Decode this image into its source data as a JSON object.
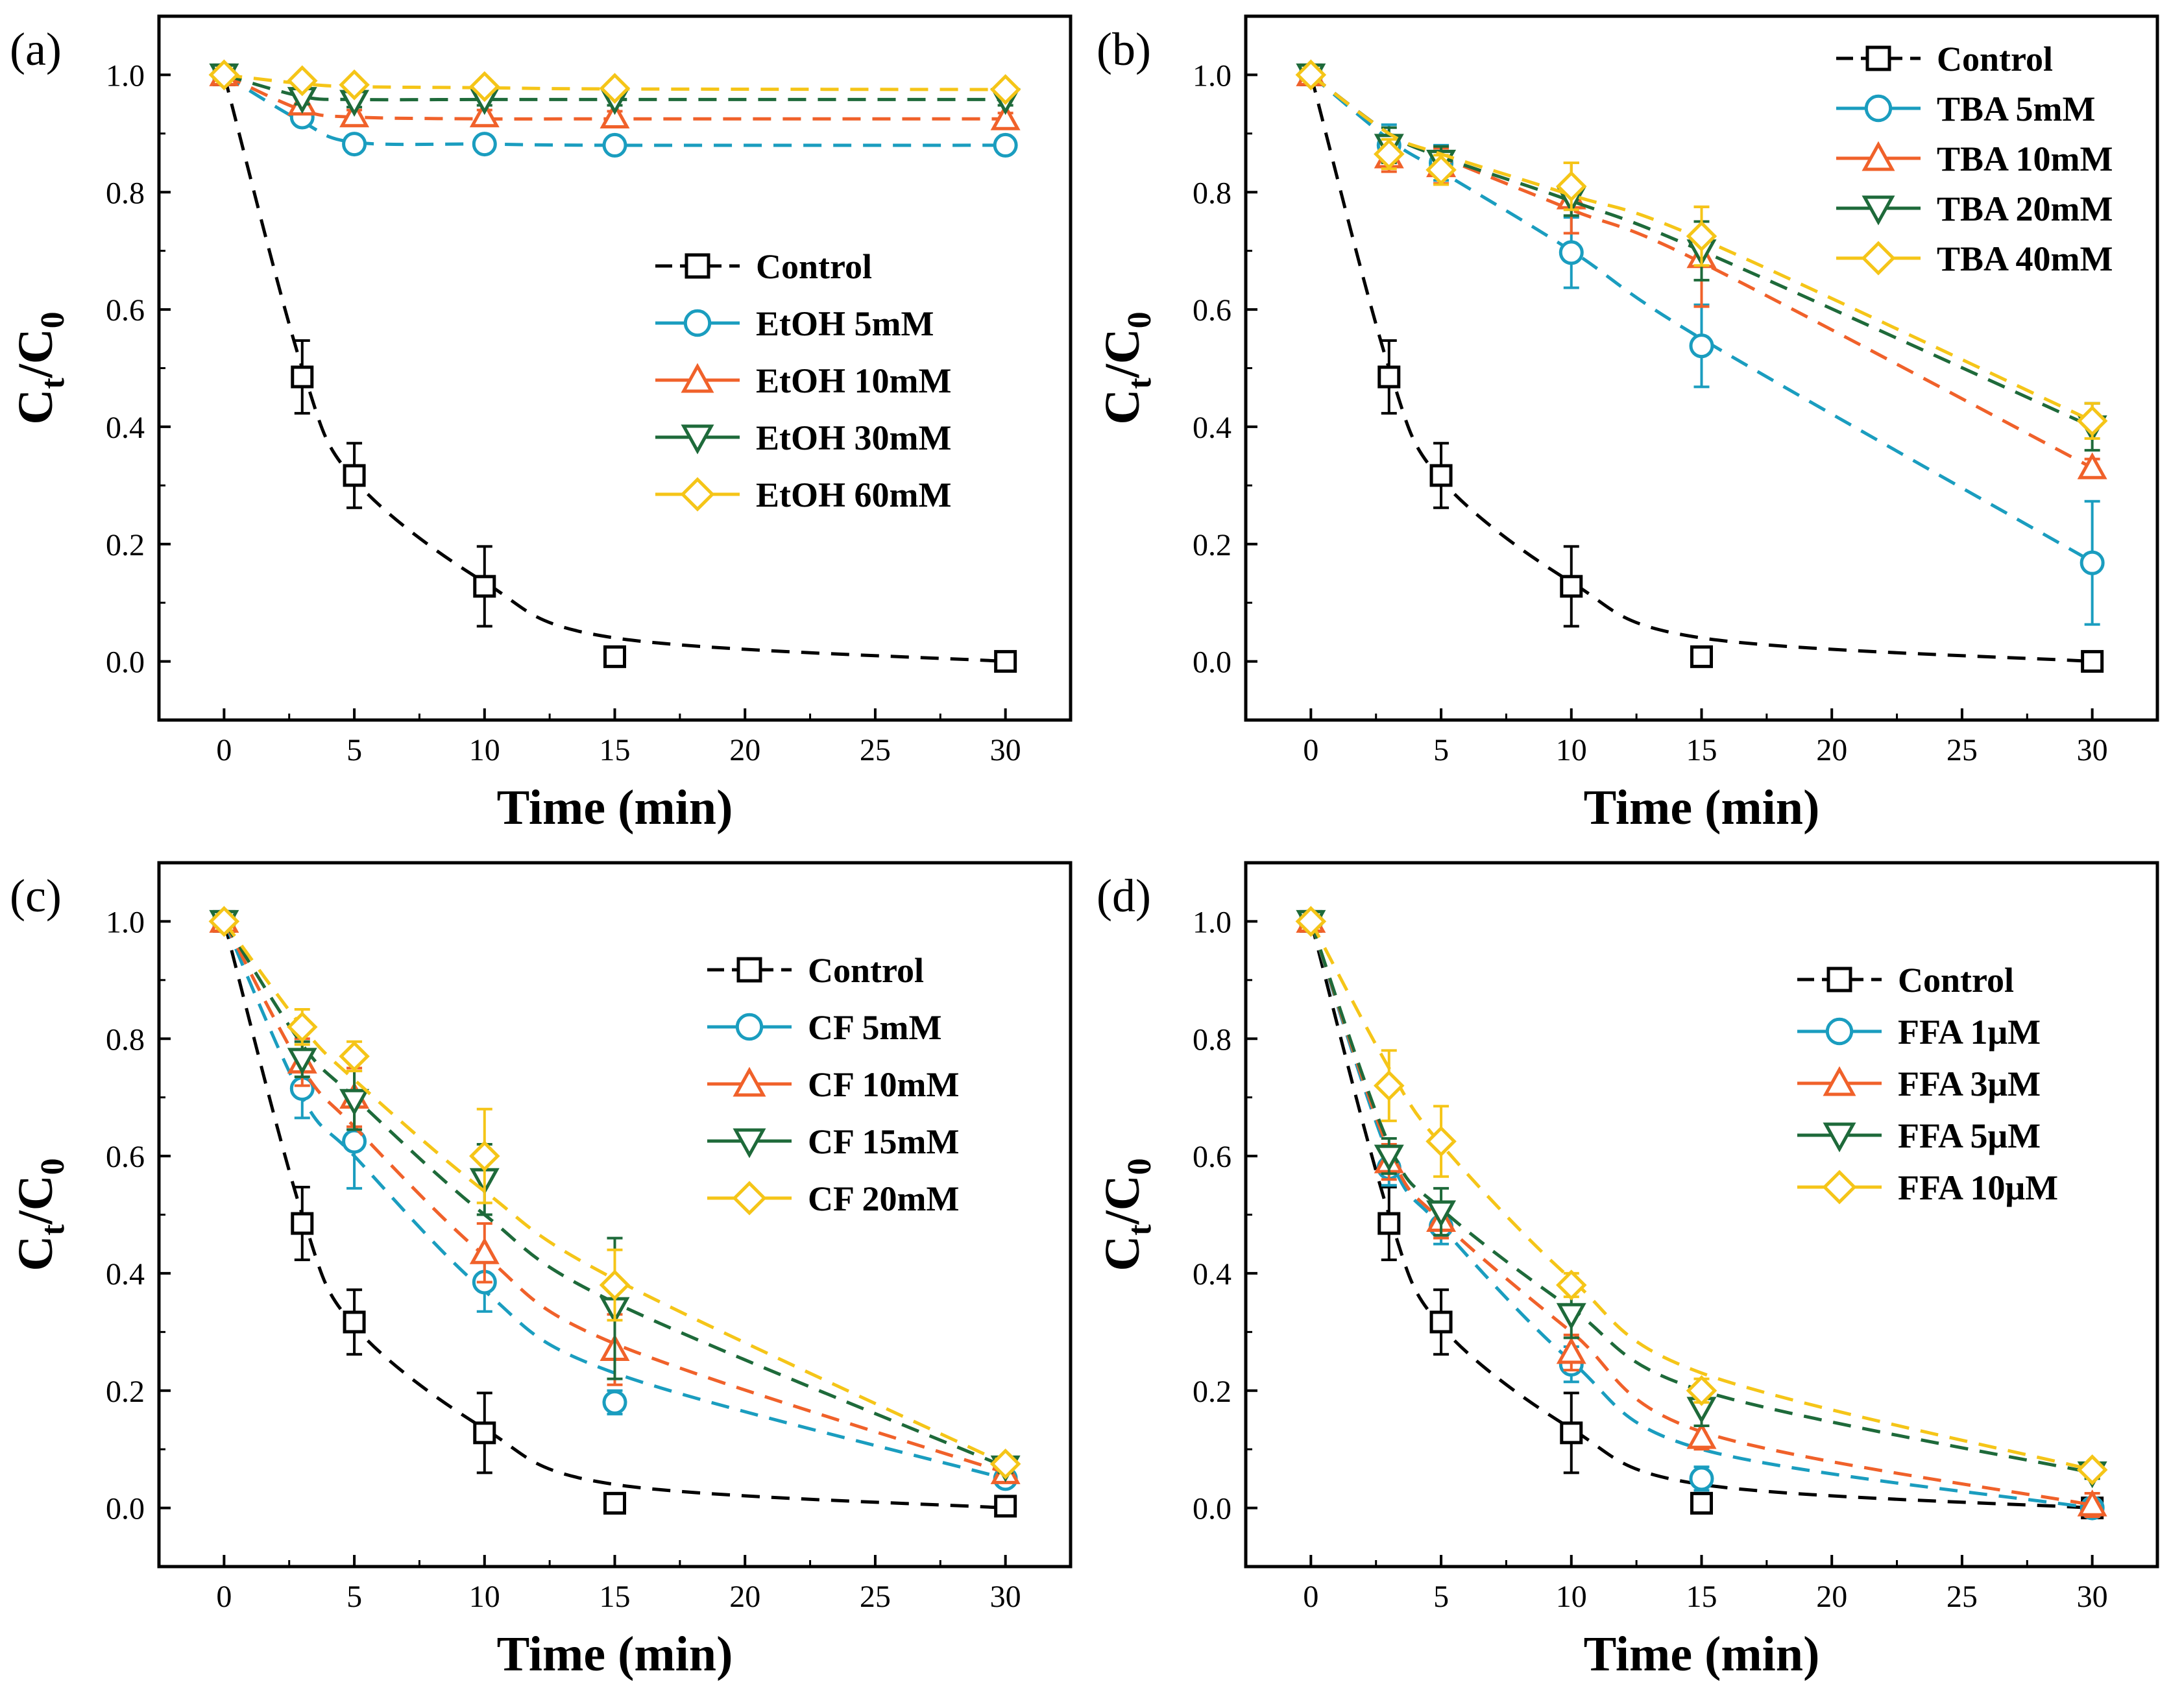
{
  "figure": {
    "panel_labels": [
      "(a)",
      "(b)",
      "(c)",
      "(d)"
    ]
  },
  "chart_data": [
    {
      "id": "a",
      "type": "line",
      "panel_label": "(a)",
      "xlabel": "Time (min)",
      "ylabel_main": "C",
      "ylabel_sub_t": "t",
      "ylabel_sub_0": "0",
      "ylabel_slash": "/",
      "xlim": [
        -2.5,
        32.5
      ],
      "ylim": [
        -0.1,
        1.1
      ],
      "xticks": [
        0,
        5,
        10,
        15,
        20,
        25,
        30
      ],
      "yticks": [
        0.0,
        0.2,
        0.4,
        0.6,
        0.8,
        1.0
      ],
      "ytick_labels": [
        "0.0",
        "0.2",
        "0.4",
        "0.6",
        "0.8",
        "1.0"
      ],
      "legend_position": "center-right",
      "x": [
        0,
        3,
        5,
        10,
        15,
        30
      ],
      "series": [
        {
          "name": "Control",
          "color": "#000000",
          "marker": "square",
          "values": [
            1.0,
            0.485,
            0.317,
            0.128,
            0.008,
            0.0
          ],
          "errors": [
            0,
            0.062,
            0.055,
            0.068,
            0.012,
            0
          ],
          "fit": [
            1.0,
            0.5,
            0.31,
            0.135,
            0.04,
            0.0
          ]
        },
        {
          "name": "EtOH 5mM",
          "color": "#1a9dbf",
          "marker": "circle",
          "values": [
            1.0,
            0.928,
            0.882,
            0.882,
            0.88,
            0.88
          ],
          "errors": [
            0,
            0.01,
            0.01,
            0.01,
            0.01,
            0.01
          ],
          "fit": [
            1.0,
            0.92,
            0.885,
            0.882,
            0.88,
            0.88
          ]
        },
        {
          "name": "EtOH 10mM",
          "color": "#f0612a",
          "marker": "triangle-up",
          "values": [
            1.0,
            0.95,
            0.93,
            0.93,
            0.928,
            0.925
          ],
          "errors": [
            0,
            0.01,
            0.01,
            0.01,
            0.01,
            0.01
          ],
          "fit": [
            1.0,
            0.94,
            0.928,
            0.925,
            0.925,
            0.925
          ]
        },
        {
          "name": "EtOH 30mM",
          "color": "#1e6a3a",
          "marker": "triangle-down",
          "values": [
            1.0,
            0.96,
            0.955,
            0.958,
            0.958,
            0.958
          ],
          "errors": [
            0,
            0.01,
            0.01,
            0.01,
            0.01,
            0.01
          ],
          "fit": [
            1.0,
            0.963,
            0.958,
            0.958,
            0.958,
            0.958
          ]
        },
        {
          "name": "EtOH 60mM",
          "color": "#f5c518",
          "marker": "diamond",
          "values": [
            1.0,
            0.99,
            0.983,
            0.98,
            0.977,
            0.975
          ],
          "errors": [
            0,
            0.01,
            0.01,
            0.01,
            0.01,
            0.01
          ],
          "fit": [
            1.0,
            0.985,
            0.98,
            0.978,
            0.976,
            0.975
          ]
        }
      ]
    },
    {
      "id": "b",
      "type": "line",
      "panel_label": "(b)",
      "xlabel": "Time (min)",
      "ylabel_main": "C",
      "ylabel_sub_t": "t",
      "ylabel_sub_0": "0",
      "ylabel_slash": "/",
      "xlim": [
        -2.5,
        32.5
      ],
      "ylim": [
        -0.1,
        1.1
      ],
      "xticks": [
        0,
        5,
        10,
        15,
        20,
        25,
        30
      ],
      "yticks": [
        0.0,
        0.2,
        0.4,
        0.6,
        0.8,
        1.0
      ],
      "ytick_labels": [
        "0.0",
        "0.2",
        "0.4",
        "0.6",
        "0.8",
        "1.0"
      ],
      "legend_position": "top-right",
      "x": [
        0,
        3,
        5,
        10,
        15,
        30
      ],
      "series": [
        {
          "name": "Control",
          "color": "#000000",
          "marker": "square",
          "values": [
            1.0,
            0.485,
            0.317,
            0.128,
            0.008,
            0.0
          ],
          "errors": [
            0,
            0.062,
            0.055,
            0.068,
            0.012,
            0
          ],
          "fit": [
            1.0,
            0.5,
            0.31,
            0.135,
            0.04,
            0.0
          ]
        },
        {
          "name": "TBA 5mM",
          "color": "#1a9dbf",
          "marker": "circle",
          "values": [
            1.0,
            0.88,
            0.85,
            0.697,
            0.538,
            0.168
          ],
          "errors": [
            0,
            0.035,
            0.03,
            0.06,
            0.07,
            0.105
          ],
          "fit": [
            1.0,
            0.89,
            0.835,
            0.7,
            0.55,
            0.17
          ]
        },
        {
          "name": "TBA 10mM",
          "color": "#f0612a",
          "marker": "triangle-up",
          "values": [
            1.0,
            0.86,
            0.845,
            0.79,
            0.69,
            0.33
          ],
          "errors": [
            0,
            0.025,
            0.03,
            0.06,
            0.085,
            0.015
          ],
          "fit": [
            1.0,
            0.9,
            0.86,
            0.77,
            0.68,
            0.33
          ]
        },
        {
          "name": "TBA 20mM",
          "color": "#1e6a3a",
          "marker": "triangle-down",
          "values": [
            1.0,
            0.88,
            0.853,
            0.79,
            0.7,
            0.4
          ],
          "errors": [
            0,
            0.03,
            0.025,
            0.03,
            0.05,
            0.04
          ],
          "fit": [
            1.0,
            0.9,
            0.86,
            0.785,
            0.7,
            0.4
          ]
        },
        {
          "name": "TBA 40mM",
          "color": "#f5c518",
          "marker": "diamond",
          "values": [
            1.0,
            0.865,
            0.838,
            0.81,
            0.725,
            0.41
          ],
          "errors": [
            0,
            0.025,
            0.025,
            0.04,
            0.05,
            0.03
          ],
          "fit": [
            1.0,
            0.9,
            0.865,
            0.795,
            0.72,
            0.41
          ]
        }
      ]
    },
    {
      "id": "c",
      "type": "line",
      "panel_label": "(c)",
      "xlabel": "Time (min)",
      "ylabel_main": "C",
      "ylabel_sub_t": "t",
      "ylabel_sub_0": "0",
      "ylabel_slash": "/",
      "xlim": [
        -2.5,
        32.5
      ],
      "ylim": [
        -0.1,
        1.1
      ],
      "xticks": [
        0,
        5,
        10,
        15,
        20,
        25,
        30
      ],
      "yticks": [
        0.0,
        0.2,
        0.4,
        0.6,
        0.8,
        1.0
      ],
      "ytick_labels": [
        "0.0",
        "0.2",
        "0.4",
        "0.6",
        "0.8",
        "1.0"
      ],
      "legend_position": "top-right",
      "x": [
        0,
        3,
        5,
        10,
        15,
        30
      ],
      "series": [
        {
          "name": "Control",
          "color": "#000000",
          "marker": "square",
          "values": [
            1.0,
            0.485,
            0.317,
            0.128,
            0.008,
            0.003
          ],
          "errors": [
            0,
            0.062,
            0.055,
            0.068,
            0.012,
            0
          ],
          "fit": [
            1.0,
            0.5,
            0.31,
            0.135,
            0.04,
            0.0
          ]
        },
        {
          "name": "CF 5mM",
          "color": "#1a9dbf",
          "marker": "circle",
          "values": [
            1.0,
            0.715,
            0.625,
            0.385,
            0.18,
            0.05
          ],
          "errors": [
            0,
            0.05,
            0.08,
            0.05,
            0.02,
            0.01
          ],
          "fit": [
            1.0,
            0.7,
            0.6,
            0.37,
            0.23,
            0.05
          ]
        },
        {
          "name": "CF 10mM",
          "color": "#f0612a",
          "marker": "triangle-up",
          "values": [
            1.0,
            0.76,
            0.7,
            0.435,
            0.27,
            0.06
          ],
          "errors": [
            0,
            0.04,
            0.05,
            0.05,
            0.06,
            0.01
          ],
          "fit": [
            1.0,
            0.75,
            0.65,
            0.43,
            0.28,
            0.06
          ]
        },
        {
          "name": "CF 15mM",
          "color": "#1e6a3a",
          "marker": "triangle-down",
          "values": [
            1.0,
            0.765,
            0.695,
            0.56,
            0.34,
            0.07
          ],
          "errors": [
            0,
            0.03,
            0.05,
            0.06,
            0.12,
            0.01
          ],
          "fit": [
            1.0,
            0.79,
            0.7,
            0.5,
            0.35,
            0.07
          ]
        },
        {
          "name": "CF 20mM",
          "color": "#f5c518",
          "marker": "diamond",
          "values": [
            1.0,
            0.82,
            0.77,
            0.6,
            0.38,
            0.075
          ],
          "errors": [
            0,
            0.03,
            0.025,
            0.08,
            0.06,
            0.01
          ],
          "fit": [
            1.0,
            0.82,
            0.73,
            0.54,
            0.39,
            0.075
          ]
        }
      ]
    },
    {
      "id": "d",
      "type": "line",
      "panel_label": "(d)",
      "xlabel": "Time (min)",
      "ylabel_main": "C",
      "ylabel_sub_t": "t",
      "ylabel_sub_0": "0",
      "ylabel_slash": "/",
      "xlim": [
        -2.5,
        32.5
      ],
      "ylim": [
        -0.1,
        1.1
      ],
      "xticks": [
        0,
        5,
        10,
        15,
        20,
        25,
        30
      ],
      "yticks": [
        0.0,
        0.2,
        0.4,
        0.6,
        0.8,
        1.0
      ],
      "ytick_labels": [
        "0.0",
        "0.2",
        "0.4",
        "0.6",
        "0.8",
        "1.0"
      ],
      "legend_position": "top-right",
      "x": [
        0,
        3,
        5,
        10,
        15,
        30
      ],
      "series": [
        {
          "name": "Control",
          "color": "#000000",
          "marker": "square",
          "values": [
            1.0,
            0.485,
            0.317,
            0.128,
            0.008,
            0.0
          ],
          "errors": [
            0,
            0.062,
            0.055,
            0.068,
            0.012,
            0
          ],
          "fit": [
            1.0,
            0.5,
            0.31,
            0.135,
            0.04,
            0.0
          ]
        },
        {
          "name": "FFA 1μM",
          "color": "#1a9dbf",
          "marker": "circle",
          "values": [
            1.0,
            0.58,
            0.48,
            0.245,
            0.05,
            0.0
          ],
          "errors": [
            0,
            0.03,
            0.03,
            0.03,
            0.02,
            0.01
          ],
          "fit": [
            1.0,
            0.6,
            0.48,
            0.25,
            0.1,
            0.0
          ]
        },
        {
          "name": "FFA 3μM",
          "color": "#f0612a",
          "marker": "triangle-up",
          "values": [
            1.0,
            0.59,
            0.49,
            0.265,
            0.12,
            0.005
          ],
          "errors": [
            0,
            0.03,
            0.03,
            0.03,
            0.02,
            0.02
          ],
          "fit": [
            1.0,
            0.61,
            0.49,
            0.3,
            0.13,
            0.005
          ]
        },
        {
          "name": "FFA 5μM",
          "color": "#1e6a3a",
          "marker": "triangle-down",
          "values": [
            1.0,
            0.6,
            0.505,
            0.33,
            0.17,
            0.06
          ],
          "errors": [
            0,
            0.03,
            0.04,
            0.04,
            0.03,
            0.01
          ],
          "fit": [
            1.0,
            0.62,
            0.51,
            0.34,
            0.2,
            0.06
          ]
        },
        {
          "name": "FFA 10μM",
          "color": "#f5c518",
          "marker": "diamond",
          "values": [
            1.0,
            0.72,
            0.625,
            0.38,
            0.2,
            0.065
          ],
          "errors": [
            0,
            0.06,
            0.06,
            0.02,
            0.02,
            0.01
          ],
          "fit": [
            1.0,
            0.75,
            0.62,
            0.39,
            0.23,
            0.065
          ]
        }
      ]
    }
  ]
}
